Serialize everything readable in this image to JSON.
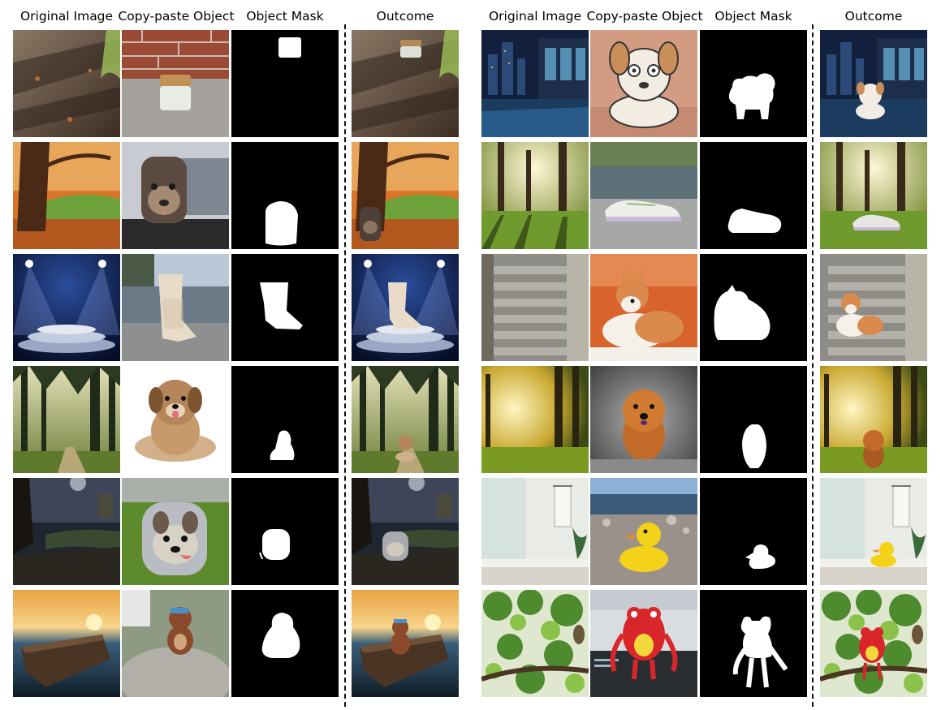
{
  "headers": {
    "left": [
      "Original Image",
      "Copy-paste Object",
      "Object Mask",
      "Outcome"
    ],
    "right": [
      "Original Image",
      "Copy-paste Object",
      "Object Mask",
      "Outcome"
    ]
  },
  "left_rows": [
    {
      "scene": "shadowed-path-with-leaves",
      "object": "jar-with-wooden-lid",
      "outcome": "jar-on-leafy-path"
    },
    {
      "scene": "autumn-tree-park",
      "object": "dog-face-backpack",
      "outcome": "backpack-under-autumn-tree"
    },
    {
      "scene": "spotlit-stage-podium",
      "object": "fringed-white-boot",
      "outcome": "boot-on-podium"
    },
    {
      "scene": "misty-forest-path",
      "object": "fluffy-puppy",
      "outcome": "puppy-on-forest-path"
    },
    {
      "scene": "dark-night-landscape",
      "object": "dog-face-kids-backpack",
      "outcome": "backpack-in-night-landscape"
    },
    {
      "scene": "sunset-sea-with-rock",
      "object": "teddy-bear-on-rock",
      "outcome": "teddy-bear-at-sunset"
    }
  ],
  "right_rows": [
    {
      "scene": "night-city-balcony",
      "object": "cartoon-bulldog",
      "outcome": "cartoon-dog-on-balcony"
    },
    {
      "scene": "sunlit-trees-shadows",
      "object": "white-sneaker",
      "outcome": "sneaker-on-grass"
    },
    {
      "scene": "stone-staircase",
      "object": "corgi-dog",
      "outcome": "corgi-on-stairs"
    },
    {
      "scene": "sunlit-forest",
      "object": "chow-chow-dog",
      "outcome": "chow-chow-in-forest"
    },
    {
      "scene": "bathroom-counter",
      "object": "rubber-duck",
      "outcome": "rubber-duck-on-counter"
    },
    {
      "scene": "tree-branches-with-owl",
      "object": "red-plush-toy",
      "outcome": "red-toy-on-branch"
    }
  ]
}
